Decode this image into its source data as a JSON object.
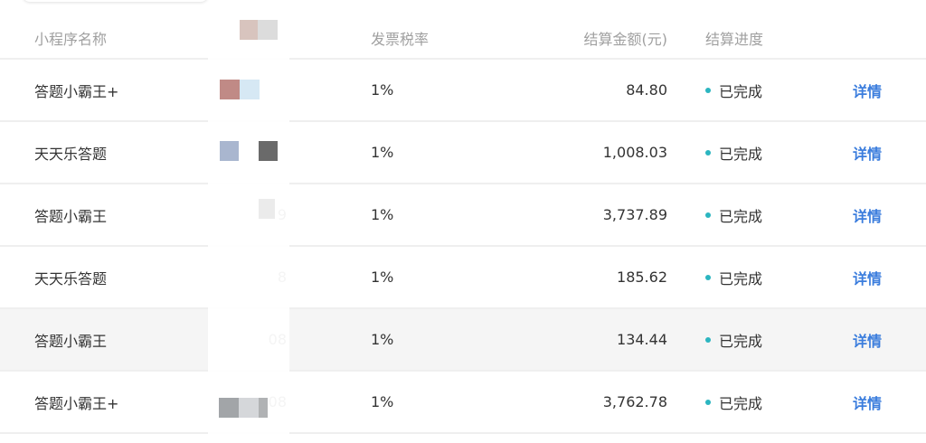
{
  "table": {
    "headers": {
      "name": "小程序名称",
      "tax": "发票税率",
      "amount": "结算金额(元)",
      "status": "结算进度"
    },
    "rows": [
      {
        "name": "答题小霸王+",
        "id_partial": "",
        "tax": "1%",
        "amount": "84.80",
        "status": "已完成",
        "action": "详情"
      },
      {
        "name": "天天乐答题",
        "id_partial": "",
        "tax": "1%",
        "amount": "1,008.03",
        "status": "已完成",
        "action": "详情"
      },
      {
        "name": "答题小霸王",
        "id_partial": "9",
        "tax": "1%",
        "amount": "3,737.89",
        "status": "已完成",
        "action": "详情"
      },
      {
        "name": "天天乐答题",
        "id_partial": "8",
        "tax": "1%",
        "amount": "185.62",
        "status": "已完成",
        "action": "详情"
      },
      {
        "name": "答题小霸王",
        "id_partial": "08",
        "tax": "1%",
        "amount": "134.44",
        "status": "已完成",
        "action": "详情"
      },
      {
        "name": "答题小霸王+",
        "id_partial": "08",
        "tax": "1%",
        "amount": "3,762.78",
        "status": "已完成",
        "action": "详情"
      }
    ],
    "highlighted_row": 4
  },
  "colors": {
    "status_dot": "#2bb5c0",
    "link": "#3b7ddd",
    "header_text": "#a0a0a0",
    "hover_row": "#f5f5f5"
  }
}
